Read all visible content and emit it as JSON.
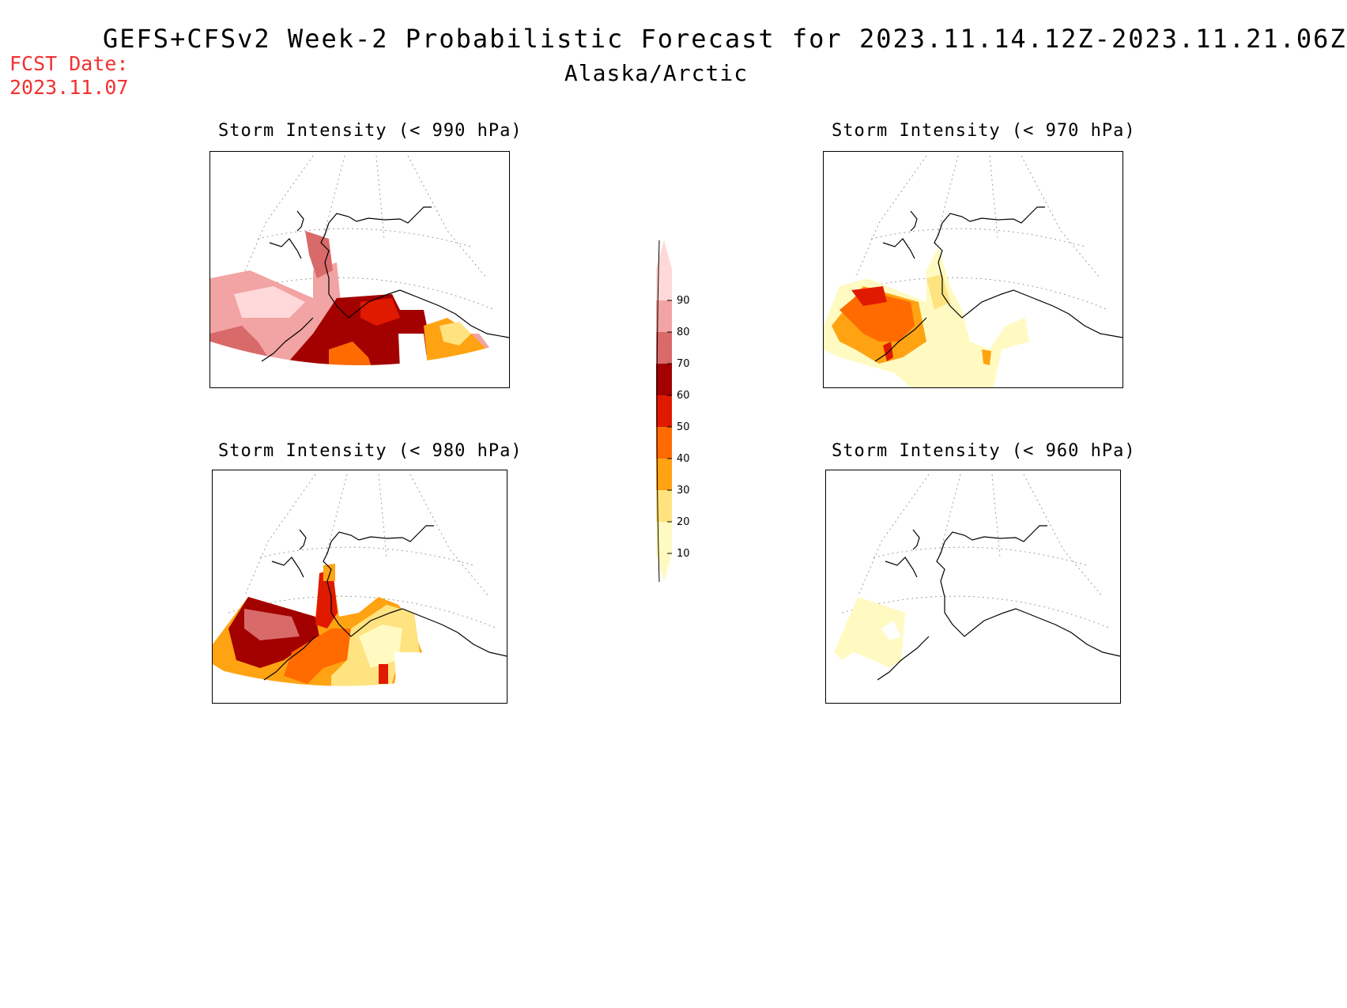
{
  "header": {
    "title": "GEFS+CFSv2 Week-2 Probabilistic Forecast for 2023.11.14.12Z-2023.11.21.06Z",
    "subtitle": "Alaska/Arctic",
    "fcst_line1": "FCST Date:",
    "fcst_line2": "2023.11.07",
    "fcst_color": "#f23030"
  },
  "panels": [
    {
      "id": "p990",
      "title": "Storm Intensity (< 990 hPa)"
    },
    {
      "id": "p970",
      "title": "Storm Intensity (< 970 hPa)"
    },
    {
      "id": "p980",
      "title": "Storm Intensity (< 980 hPa)"
    },
    {
      "id": "p960",
      "title": "Storm Intensity (< 960 hPa)"
    }
  ],
  "colorbar": {
    "levels": [
      "10",
      "20",
      "30",
      "40",
      "50",
      "60",
      "70",
      "80",
      "90"
    ],
    "colors": [
      "#fffac2",
      "#ffe380",
      "#ffa312",
      "#ff6b00",
      "#e01a00",
      "#a30000",
      "#d96a6a",
      "#f2a3a3",
      "#ffd9d9"
    ]
  }
}
